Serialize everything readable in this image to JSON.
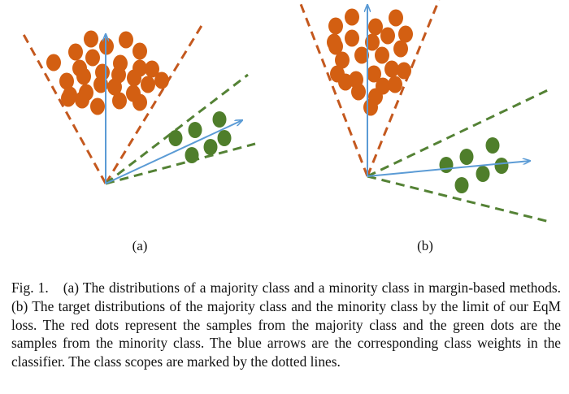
{
  "figure": {
    "panels": [
      {
        "id": "a",
        "label": "(a)"
      },
      {
        "id": "b",
        "label": "(b)"
      }
    ],
    "colors": {
      "majority_dot": "#d35f12",
      "minority_dot": "#4f7e2b",
      "majority_scope": "#c4581e",
      "minority_scope": "#548235",
      "class_weight_arrow": "#5b9bd5"
    }
  },
  "caption": {
    "fig_number": "Fig. 1.",
    "text": "(a) The distributions of a majority class and a minority class in margin-based methods. (b) The target distributions of the majority class and the minority class by the limit of our EqM loss. The red dots represent the samples from the majority class and the green dots are the samples from the minority class. The blue arrows are the corresponding class weights in the classifier. The class scopes are marked by the dotted lines."
  }
}
